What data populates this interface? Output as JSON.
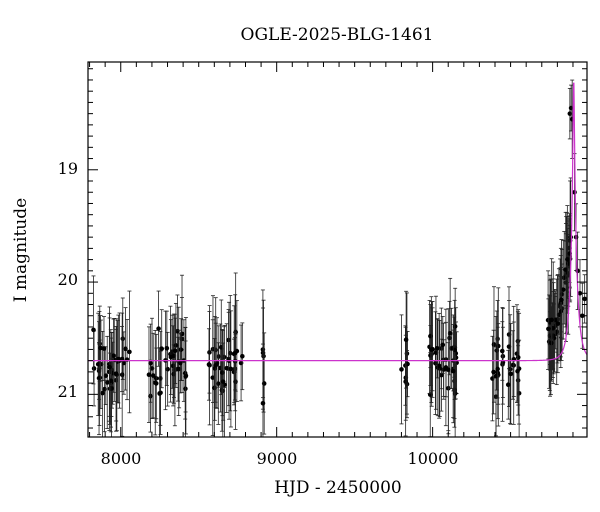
{
  "chart_data": {
    "type": "scatter",
    "title": "OGLE-2025-BLG-1461",
    "xlabel": "HJD - 2450000",
    "ylabel": "I magnitude",
    "xlim": [
      7790,
      10990
    ],
    "ylim": [
      21.38,
      18.04
    ],
    "y_inverted": true,
    "x_ticks": [
      8000,
      9000,
      10000
    ],
    "x_tick_labels": [
      "8000",
      "9000",
      "10000"
    ],
    "y_ticks": [
      19,
      20,
      21
    ],
    "y_tick_labels": [
      "19",
      "20",
      "21"
    ],
    "grid": false,
    "legend": "none",
    "colors": {
      "points": "#000000",
      "model": "#cc33cc"
    },
    "model": {
      "type": "paczynski",
      "baseline": 20.7,
      "t0": 10905,
      "tE": 40,
      "u0": 0.1
    },
    "observing_seasons": [
      {
        "start": 7800,
        "end": 8060,
        "base": 20.75,
        "scatter": 0.18,
        "count": 40
      },
      {
        "start": 8180,
        "end": 8420,
        "base": 20.72,
        "scatter": 0.17,
        "count": 38
      },
      {
        "start": 8560,
        "end": 8780,
        "base": 20.74,
        "scatter": 0.18,
        "count": 36
      },
      {
        "start": 8905,
        "end": 8920,
        "base": 20.78,
        "scatter": 0.2,
        "count": 5
      },
      {
        "start": 9800,
        "end": 9840,
        "base": 20.7,
        "scatter": 0.2,
        "count": 8
      },
      {
        "start": 9980,
        "end": 10160,
        "base": 20.72,
        "scatter": 0.18,
        "count": 38
      },
      {
        "start": 10380,
        "end": 10560,
        "base": 20.73,
        "scatter": 0.17,
        "count": 30
      },
      {
        "start": 10740,
        "end": 10890,
        "base": 20.45,
        "scatter": 0.15,
        "count": 55
      }
    ],
    "peak_points": [
      {
        "x": 10880,
        "y": 18.5
      },
      {
        "x": 10888,
        "y": 18.45
      },
      {
        "x": 10895,
        "y": 18.55
      },
      {
        "x": 10910,
        "y": 19.2
      },
      {
        "x": 10920,
        "y": 19.6
      },
      {
        "x": 10930,
        "y": 19.9
      },
      {
        "x": 10945,
        "y": 20.1
      },
      {
        "x": 10960,
        "y": 20.3
      },
      {
        "x": 10975,
        "y": 20.15
      }
    ]
  }
}
